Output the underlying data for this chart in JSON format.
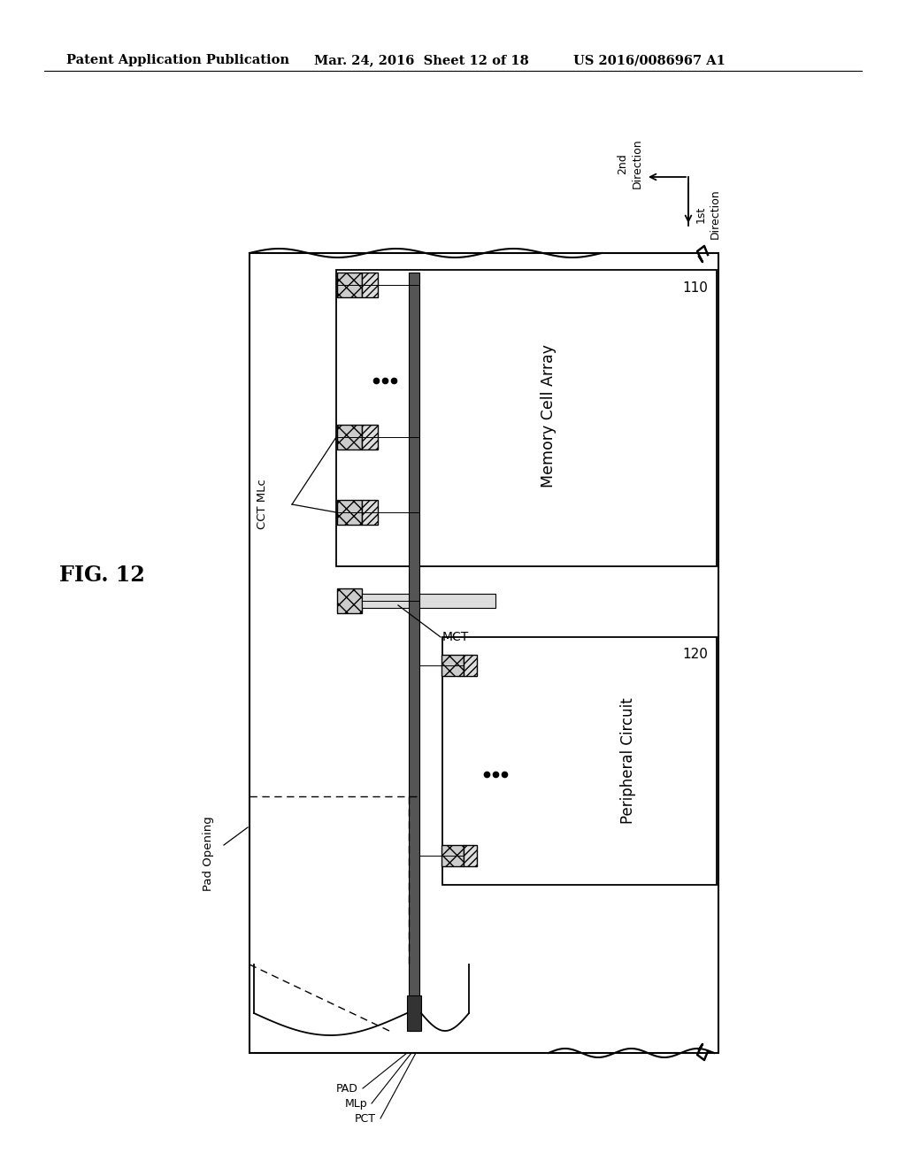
{
  "bg_color": "#ffffff",
  "title_left": "Patent Application Publication",
  "title_mid": "Mar. 24, 2016  Sheet 12 of 18",
  "title_right": "US 2016/0086967 A1",
  "fig_label": "FIG. 12"
}
